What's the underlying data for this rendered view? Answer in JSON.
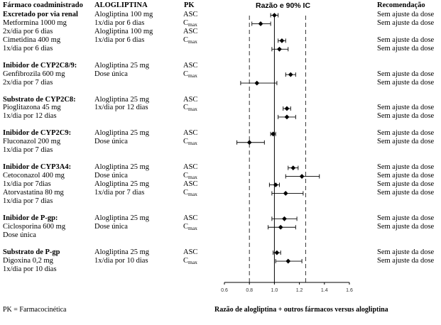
{
  "headers": {
    "drug": "Fármaco coadministrado",
    "alogliptin": "ALOGLIPTINA",
    "pk": "PK",
    "ci": "Razão e 90% IC",
    "rec": "Recomendação"
  },
  "rows": [
    {
      "drug": "Excretado por via renal",
      "bold": true,
      "aloglip": "Alogliptina 100 mg",
      "pk": "ASC",
      "rec": "Sem ajuste da dose"
    },
    {
      "drug": "Metformina 1000 mg",
      "aloglip": "1x/dia por 6 dias",
      "pk": "Cmax",
      "rec": "Sem ajuste da dose"
    },
    {
      "drug": "2x/dia por 6 dias",
      "aloglip": "Alogliptina 100 mg",
      "pk": "ASC",
      "rec": ""
    },
    {
      "drug": "Cimetidina 400 mg",
      "aloglip": "1x/dia por 6 dias",
      "pk": "Cmax",
      "rec": "Sem ajuste da dose"
    },
    {
      "drug": "1x/dia por 6 dias",
      "aloglip": "",
      "pk": "",
      "rec": "Sem ajuste da dose"
    },
    {
      "drug": "",
      "aloglip": "",
      "pk": "",
      "rec": ""
    },
    {
      "drug": "Inibidor de CYP2C8/9:",
      "bold": true,
      "aloglip": "Alogliptina 25 mg",
      "pk": "ASC",
      "rec": ""
    },
    {
      "drug": "Genfibrozila 600 mg",
      "aloglip": "Dose única",
      "pk": "Cmax",
      "rec": "Sem ajuste da dose"
    },
    {
      "drug": "2x/dia por 7 dias",
      "aloglip": "",
      "pk": "",
      "rec": "Sem ajuste da dose"
    },
    {
      "drug": "",
      "aloglip": "",
      "pk": "",
      "rec": ""
    },
    {
      "drug": "Substrato de CYP2C8:",
      "bold": true,
      "aloglip": "Alogliptina 25 mg",
      "pk": "ASC",
      "rec": ""
    },
    {
      "drug": "Pioglitazona 45 mg",
      "aloglip": "1x/dia por 12 dias",
      "pk": "Cmax",
      "rec": "Sem ajuste da dose"
    },
    {
      "drug": "1x/dia por 12 dias",
      "aloglip": "",
      "pk": "",
      "rec": "Sem ajuste da dose"
    },
    {
      "drug": "",
      "aloglip": "",
      "pk": "",
      "rec": ""
    },
    {
      "drug": "Inibidor de CYP2C9:",
      "bold": true,
      "aloglip": "Alogliptina 25 mg",
      "pk": "ASC",
      "rec": "Sem ajuste da dose"
    },
    {
      "drug": "Fluconazol 200 mg",
      "aloglip": "Dose única",
      "pk": "Cmax",
      "rec": "Sem ajuste da dose"
    },
    {
      "drug": "1x/dia por 7 dias",
      "aloglip": "",
      "pk": "",
      "rec": ""
    },
    {
      "drug": "",
      "aloglip": "",
      "pk": "",
      "rec": ""
    },
    {
      "drug": "Inibidor de CYP3A4:",
      "bold": true,
      "aloglip": "Alogliptina 25 mg",
      "pk": "ASC",
      "rec": "Sem ajuste da dose"
    },
    {
      "drug": "Cetoconazol 400 mg",
      "aloglip": "Dose única",
      "pk": "Cmax",
      "rec": "Sem ajuste da dose"
    },
    {
      "drug": "1x/dia por 7dias",
      "aloglip": "Alogliptina 25 mg",
      "pk": "ASC",
      "rec": "Sem ajuste da dose"
    },
    {
      "drug": "Atorvastatina 80 mg",
      "aloglip": "1x/dia por 7 dias",
      "pk": "Cmax",
      "rec": "Sem ajuste da dose"
    },
    {
      "drug": "1x/dia por 7 dias",
      "aloglip": "",
      "pk": "",
      "rec": ""
    },
    {
      "drug": "",
      "aloglip": "",
      "pk": "",
      "rec": ""
    },
    {
      "drug": "Inibidor de P-gp:",
      "bold": true,
      "aloglip": "Alogliptina 25 mg",
      "pk": "ASC",
      "rec": "Sem ajuste da dose"
    },
    {
      "drug": "Ciclosporina 600 mg",
      "aloglip": "Dose única",
      "pk": "Cmax",
      "rec": "Sem ajuste da dose"
    },
    {
      "drug": "Dose única",
      "aloglip": "",
      "pk": "",
      "rec": ""
    },
    {
      "drug": "",
      "aloglip": "",
      "pk": "",
      "rec": ""
    },
    {
      "drug": "Substrato de P-gp",
      "bold": true,
      "aloglip": "Alogliptina 25 mg",
      "pk": "ASC",
      "rec": "Sem ajuste da dose"
    },
    {
      "drug": "Digoxina 0,2 mg",
      "aloglip": "1x/dia por 10 dias",
      "pk": "Cmax",
      "rec": "Sem ajuste da dose"
    },
    {
      "drug": "1x/dia por 10 dias",
      "aloglip": "",
      "pk": "",
      "rec": ""
    }
  ],
  "footer": {
    "pk_note": "PK = Farmacocinética",
    "axis_title": "Razão de alogliptina + outros fármacos versus alogliptina"
  },
  "chart_data": {
    "type": "forest",
    "title": "Razão e 90% IC",
    "xlabel": "Razão de alogliptina + outros fármacos versus alogliptina",
    "xlim": [
      0.6,
      1.6
    ],
    "xticks": [
      "0.6",
      "0.8",
      "1.0",
      "1.2",
      "1.4",
      "1.6"
    ],
    "reference_line": 1.0,
    "bounds_lines": [
      0.8,
      1.25
    ],
    "points": [
      {
        "label": "Metformina ASC",
        "row": 0,
        "est": 1.0,
        "lo": 0.97,
        "hi": 1.03
      },
      {
        "label": "Metformina Cmax",
        "row": 1,
        "est": 0.89,
        "lo": 0.82,
        "hi": 0.97
      },
      {
        "label": "Cimetidina ASC",
        "row": 3,
        "est": 1.06,
        "lo": 1.03,
        "hi": 1.09
      },
      {
        "label": "Cimetidina Cmax",
        "row": 4,
        "est": 1.04,
        "lo": 0.98,
        "hi": 1.11
      },
      {
        "label": "Genfibrozila ASC",
        "row": 7,
        "est": 1.13,
        "lo": 1.09,
        "hi": 1.17
      },
      {
        "label": "Genfibrozila Cmax",
        "row": 8,
        "est": 0.86,
        "lo": 0.73,
        "hi": 1.02
      },
      {
        "label": "Pioglitazona ASC",
        "row": 11,
        "est": 1.1,
        "lo": 1.07,
        "hi": 1.13
      },
      {
        "label": "Pioglitazona Cmax",
        "row": 12,
        "est": 1.1,
        "lo": 1.03,
        "hi": 1.17
      },
      {
        "label": "Fluconazol ASC",
        "row": 14,
        "est": 0.99,
        "lo": 0.97,
        "hi": 1.01
      },
      {
        "label": "Fluconazol Cmax",
        "row": 15,
        "est": 0.8,
        "lo": 0.7,
        "hi": 0.92
      },
      {
        "label": "Cetoconazol ASC",
        "row": 18,
        "est": 1.15,
        "lo": 1.11,
        "hi": 1.19
      },
      {
        "label": "Cetoconazol Cmax",
        "row": 19,
        "est": 1.22,
        "lo": 1.09,
        "hi": 1.36
      },
      {
        "label": "Atorvastatina ASC",
        "row": 20,
        "est": 1.01,
        "lo": 0.96,
        "hi": 1.04
      },
      {
        "label": "Atorvastatina Cmax",
        "row": 21,
        "est": 1.09,
        "lo": 0.98,
        "hi": 1.23
      },
      {
        "label": "Ciclosporina ASC",
        "row": 24,
        "est": 1.08,
        "lo": 0.98,
        "hi": 1.18
      },
      {
        "label": "Ciclosporina Cmax",
        "row": 25,
        "est": 1.05,
        "lo": 0.95,
        "hi": 1.17
      },
      {
        "label": "Digoxina ASC",
        "row": 28,
        "est": 1.02,
        "lo": 0.99,
        "hi": 1.05
      },
      {
        "label": "Digoxina Cmax",
        "row": 29,
        "est": 1.11,
        "lo": 1.01,
        "hi": 1.22
      }
    ]
  }
}
